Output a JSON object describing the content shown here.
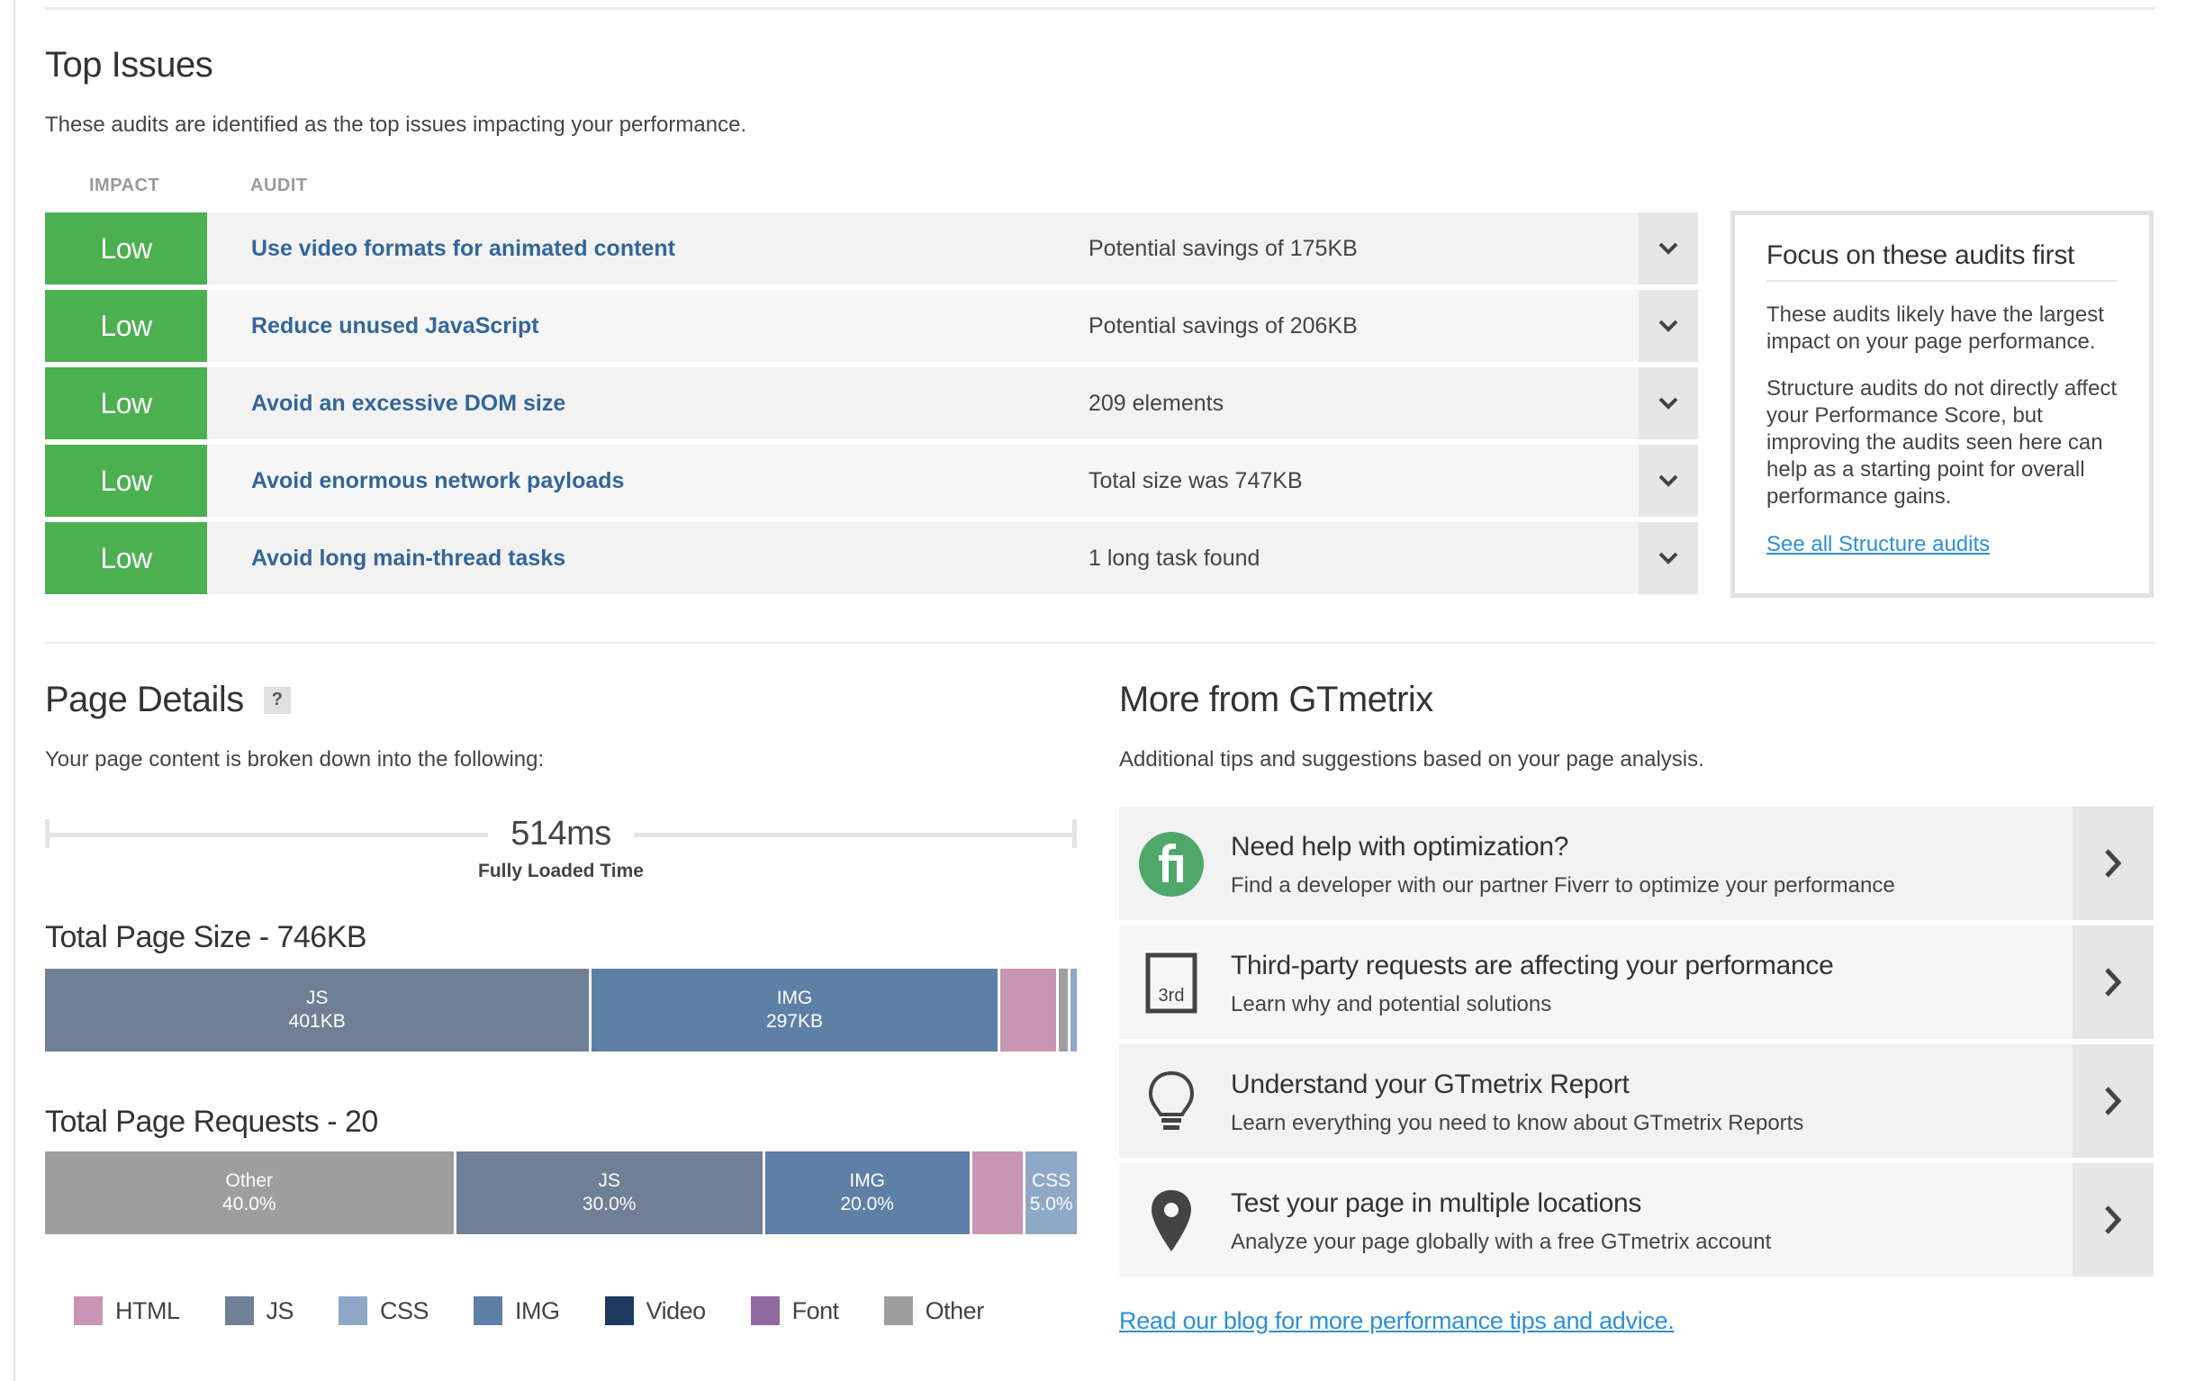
{
  "top_issues": {
    "title": "Top Issues",
    "subtitle": "These audits are identified as the top issues impacting your performance.",
    "col_impact": "IMPACT",
    "col_audit": "AUDIT",
    "rows": [
      {
        "impact": "Low",
        "audit": "Use video formats for animated content",
        "value": "Potential savings of 175KB"
      },
      {
        "impact": "Low",
        "audit": "Reduce unused JavaScript",
        "value": "Potential savings of 206KB"
      },
      {
        "impact": "Low",
        "audit": "Avoid an excessive DOM size",
        "value": "209 elements"
      },
      {
        "impact": "Low",
        "audit": "Avoid enormous network payloads",
        "value": "Total size was 747KB"
      },
      {
        "impact": "Low",
        "audit": "Avoid long main-thread tasks",
        "value": "1 long task found"
      }
    ],
    "impact_color": "#4caf50"
  },
  "focus": {
    "title": "Focus on these audits first",
    "p1": "These audits likely have the largest impact on your page performance.",
    "p2": "Structure audits do not directly affect your Performance Score, but improving the audits seen here can help as a starting point for overall performance gains.",
    "link": "See all Structure audits"
  },
  "page_details": {
    "title": "Page Details",
    "help": "?",
    "subtitle": "Your page content is broken down into the following:",
    "fully_loaded_time": "514ms",
    "fully_loaded_label": "Fully Loaded Time",
    "size_title": "Total Page Size - 746KB",
    "size_segments": [
      {
        "type": "JS",
        "label": "JS",
        "value": "401KB",
        "share": 0.533,
        "color": "#6f7f95"
      },
      {
        "type": "IMG",
        "label": "IMG",
        "value": "297KB",
        "share": 0.397,
        "color": "#5e7fa6"
      },
      {
        "type": "HTML",
        "label": "",
        "value": "",
        "share": 0.055,
        "color": "#c995b4"
      },
      {
        "type": "Other",
        "label": "",
        "value": "",
        "share": 0.009,
        "color": "#9e9e9e"
      },
      {
        "type": "CSS",
        "label": "",
        "value": "",
        "share": 0.006,
        "color": "#8fa8c8"
      }
    ],
    "requests_title": "Total Page Requests - 20",
    "request_segments": [
      {
        "type": "Other",
        "label": "Other",
        "value": "40.0%",
        "share": 0.4,
        "color": "#9e9e9e"
      },
      {
        "type": "JS",
        "label": "JS",
        "value": "30.0%",
        "share": 0.3,
        "color": "#6f7f95"
      },
      {
        "type": "IMG",
        "label": "IMG",
        "value": "20.0%",
        "share": 0.2,
        "color": "#5e7fa6"
      },
      {
        "type": "HTML",
        "label": "",
        "value": "",
        "share": 0.05,
        "color": "#c995b4"
      },
      {
        "type": "CSS",
        "label": "CSS",
        "value": "5.0%",
        "share": 0.05,
        "color": "#8fa8c8"
      }
    ],
    "legend": [
      {
        "label": "HTML",
        "color": "#c995b4"
      },
      {
        "label": "JS",
        "color": "#6f7f95"
      },
      {
        "label": "CSS",
        "color": "#8fa8c8"
      },
      {
        "label": "IMG",
        "color": "#5e7fa6"
      },
      {
        "label": "Video",
        "color": "#1f3a5f"
      },
      {
        "label": "Font",
        "color": "#8e6aa0"
      },
      {
        "label": "Other",
        "color": "#9e9e9e"
      }
    ]
  },
  "more": {
    "title": "More from GTmetrix",
    "subtitle": "Additional tips and suggestions based on your page analysis.",
    "items": [
      {
        "icon": "fiverr-icon",
        "head": "Need help with optimization?",
        "desc": "Find a developer with our partner Fiverr to optimize your performance"
      },
      {
        "icon": "third-party-icon",
        "icon_text": "3rd",
        "head": "Third-party requests are affecting your performance",
        "desc": "Learn why and potential solutions"
      },
      {
        "icon": "lightbulb-icon",
        "head": "Understand your GTmetrix Report",
        "desc": "Learn everything you need to know about GTmetrix Reports"
      },
      {
        "icon": "location-pin-icon",
        "head": "Test your page in multiple locations",
        "desc": "Analyze your page globally with a free GTmetrix account"
      }
    ],
    "blog_link": "Read our blog for more performance tips and advice."
  }
}
